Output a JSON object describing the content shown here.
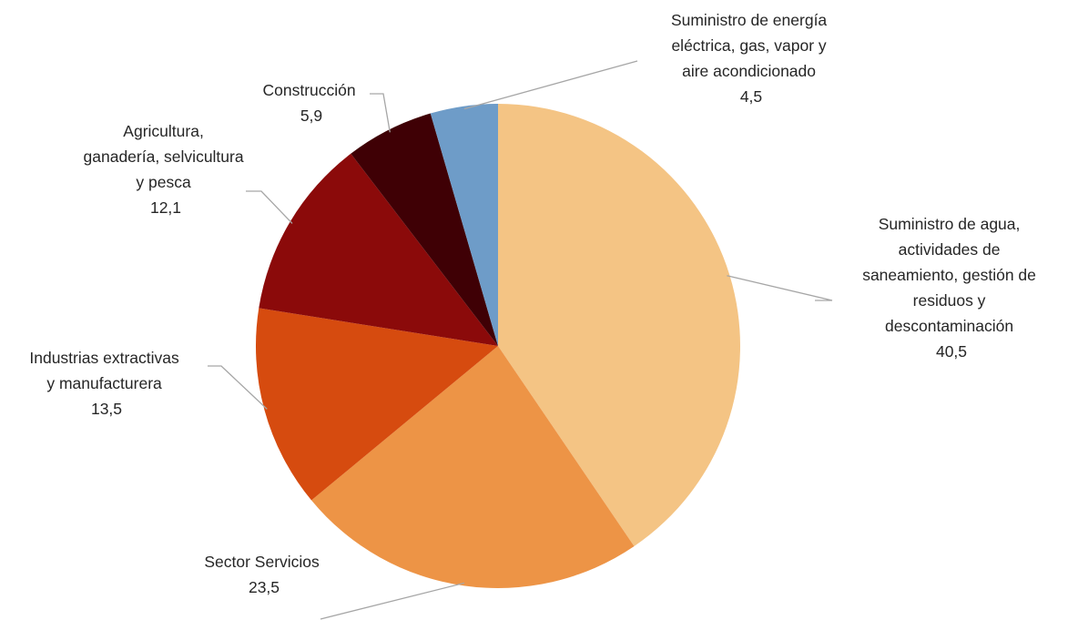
{
  "chart_data": {
    "type": "pie",
    "title": "",
    "slices": [
      {
        "label_lines": [
          "Suministro de agua,",
          "actividades de",
          "saneamiento, gestión de",
          "residuos y",
          "descontaminación"
        ],
        "value_label": "40,5",
        "value": 40.5,
        "color": "#F4C484"
      },
      {
        "label_lines": [
          "Sector Servicios"
        ],
        "value_label": "23,5",
        "value": 23.5,
        "color": "#ED9446"
      },
      {
        "label_lines": [
          "Industrias extractivas",
          "y manufacturera"
        ],
        "value_label": "13,5",
        "value": 13.5,
        "color": "#D64B0F"
      },
      {
        "label_lines": [
          "Agricultura,",
          "ganadería, selvicultura",
          "y pesca"
        ],
        "value_label": "12,1",
        "value": 12.1,
        "color": "#8B0A0A"
      },
      {
        "label_lines": [
          "Construcción"
        ],
        "value_label": "5,9",
        "value": 5.9,
        "color": "#3F0005"
      },
      {
        "label_lines": [
          "Suministro de energía",
          "eléctrica, gas, vapor y",
          "aire acondicionado"
        ],
        "value_label": "4,5",
        "value": 4.5,
        "color": "#6E9CC8"
      }
    ],
    "start_angle_deg": 0,
    "direction": "clockwise",
    "legend": "none",
    "data_labels": "outside with leader lines"
  }
}
